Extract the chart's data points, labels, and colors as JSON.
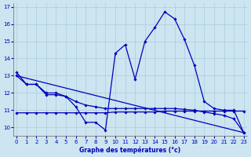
{
  "title": "Graphe des températures (°c)",
  "background_color": "#cce5f0",
  "line_color": "#0000bb",
  "grid_color": "#aaccdd",
  "ylim": [
    9.5,
    17.2
  ],
  "xlim": [
    -0.3,
    23.3
  ],
  "yticks": [
    10,
    11,
    12,
    13,
    14,
    15,
    16,
    17
  ],
  "xticks": [
    0,
    1,
    2,
    3,
    4,
    5,
    6,
    7,
    8,
    9,
    10,
    11,
    12,
    13,
    14,
    15,
    16,
    17,
    18,
    19,
    20,
    21,
    22,
    23
  ],
  "series1_main": {
    "x": [
      0,
      1,
      2,
      3,
      4,
      5,
      6,
      7,
      8,
      9,
      10,
      11,
      12,
      13,
      14,
      15,
      16,
      17,
      18,
      19,
      20,
      21,
      22,
      23
    ],
    "y": [
      13.2,
      12.5,
      12.5,
      12.0,
      12.0,
      11.8,
      11.2,
      10.3,
      10.3,
      9.85,
      14.3,
      14.8,
      12.8,
      15.0,
      15.8,
      16.7,
      16.3,
      15.1,
      13.6,
      11.5,
      11.1,
      11.0,
      11.0,
      9.7
    ]
  },
  "series2_flat": {
    "x": [
      0,
      1,
      2,
      3,
      4,
      5,
      6,
      7,
      8,
      9,
      10,
      11,
      12,
      13,
      14,
      15,
      16,
      17,
      18,
      19,
      20,
      21,
      22,
      23
    ],
    "y": [
      10.85,
      10.85,
      10.85,
      10.85,
      10.85,
      10.85,
      10.85,
      10.85,
      10.85,
      10.85,
      10.9,
      10.9,
      10.9,
      10.9,
      10.9,
      10.95,
      10.95,
      10.95,
      10.95,
      10.95,
      10.95,
      10.95,
      10.95,
      10.95
    ]
  },
  "series3_decline": {
    "x": [
      0,
      1,
      2,
      3,
      4,
      5,
      6,
      7,
      8,
      9,
      10,
      11,
      12,
      13,
      14,
      15,
      16,
      17,
      18,
      19,
      20,
      21,
      22,
      23
    ],
    "y": [
      13.0,
      12.5,
      12.5,
      11.9,
      11.9,
      11.8,
      11.5,
      11.3,
      11.2,
      11.1,
      11.1,
      11.1,
      11.1,
      11.1,
      11.1,
      11.1,
      11.1,
      11.05,
      11.0,
      10.9,
      10.8,
      10.7,
      10.5,
      9.7
    ]
  },
  "series4_line": {
    "x": [
      0,
      23
    ],
    "y": [
      13.0,
      9.7
    ]
  }
}
